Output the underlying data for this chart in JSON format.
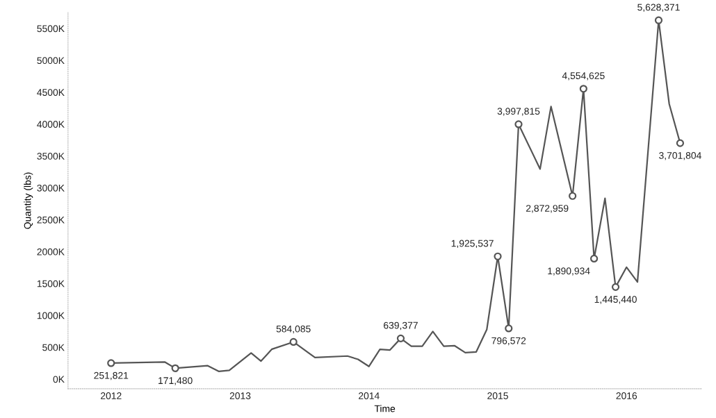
{
  "chart_data": {
    "type": "line",
    "xlabel": "Time",
    "ylabel": "Quantity (lbs)",
    "series": [
      {
        "color": "#555555",
        "marker": "none",
        "x": [
          "2012-01",
          "2012-06",
          "2012-07",
          "2012-10",
          "2012-11",
          "2012-12",
          "2013-02",
          "2013-03",
          "2013-04",
          "2013-06",
          "2013-08",
          "2013-11",
          "2013-12",
          "2014-01",
          "2014-02",
          "2014-03",
          "2014-04",
          "2014-05",
          "2014-06",
          "2014-07",
          "2014-08",
          "2014-09",
          "2014-10",
          "2014-11",
          "2014-12",
          "2015-01",
          "2015-02",
          "2015-03",
          "2015-05",
          "2015-06",
          "2015-08",
          "2015-09",
          "2015-10",
          "2015-11",
          "2015-12",
          "2016-01",
          "2016-02",
          "2016-04",
          "2016-05",
          "2016-06"
        ],
        "values": [
          251821,
          270000,
          171480,
          211000,
          123000,
          139000,
          411000,
          283000,
          471000,
          584085,
          339000,
          363000,
          311000,
          200000,
          468000,
          456000,
          639377,
          516000,
          516000,
          748000,
          516000,
          524000,
          416000,
          428000,
          780000,
          1925537,
          796572,
          3997815,
          3296000,
          4276000,
          2872959,
          4554625,
          1890934,
          2836000,
          1445440,
          1756000,
          1524000,
          5628371,
          4316000,
          3701804
        ]
      },
      {
        "type": "scatter",
        "color": "#555555",
        "marker": "circle",
        "x": [
          "2012-01",
          "2012-07",
          "2013-06",
          "2014-04",
          "2015-01",
          "2015-02",
          "2015-03",
          "2015-08",
          "2015-09",
          "2015-10",
          "2015-12",
          "2016-04",
          "2016-06"
        ],
        "values": [
          251821,
          171480,
          584085,
          639377,
          1925537,
          796572,
          3997815,
          2872959,
          4554625,
          1890934,
          1445440,
          5628371,
          3701804
        ],
        "value_labels": [
          "251,821",
          "171,480",
          "584,085",
          "639,377",
          "1,925,537",
          "796,572",
          "3,997,815",
          "2,872,959",
          "4,554,625",
          "1,890,934",
          "1,445,440",
          "5,628,371",
          "3,701,804"
        ]
      }
    ],
    "xlim": [
      "2011-09",
      "2016-08"
    ],
    "xticks": [
      "2012",
      "2013",
      "2014",
      "2015",
      "2016"
    ],
    "ylim": [
      -150000,
      5750000
    ],
    "yticks": [
      {
        "value": 0,
        "label": "0K"
      },
      {
        "value": 500000,
        "label": "500K"
      },
      {
        "value": 1000000,
        "label": "1000K"
      },
      {
        "value": 1500000,
        "label": "1500K"
      },
      {
        "value": 2000000,
        "label": "2000K"
      },
      {
        "value": 2500000,
        "label": "2500K"
      },
      {
        "value": 3000000,
        "label": "3000K"
      },
      {
        "value": 3500000,
        "label": "3500K"
      },
      {
        "value": 4000000,
        "label": "4000K"
      },
      {
        "value": 4500000,
        "label": "4500K"
      },
      {
        "value": 5000000,
        "label": "5000K"
      },
      {
        "value": 5500000,
        "label": "5500K"
      }
    ],
    "grid": false,
    "legend": false
  }
}
